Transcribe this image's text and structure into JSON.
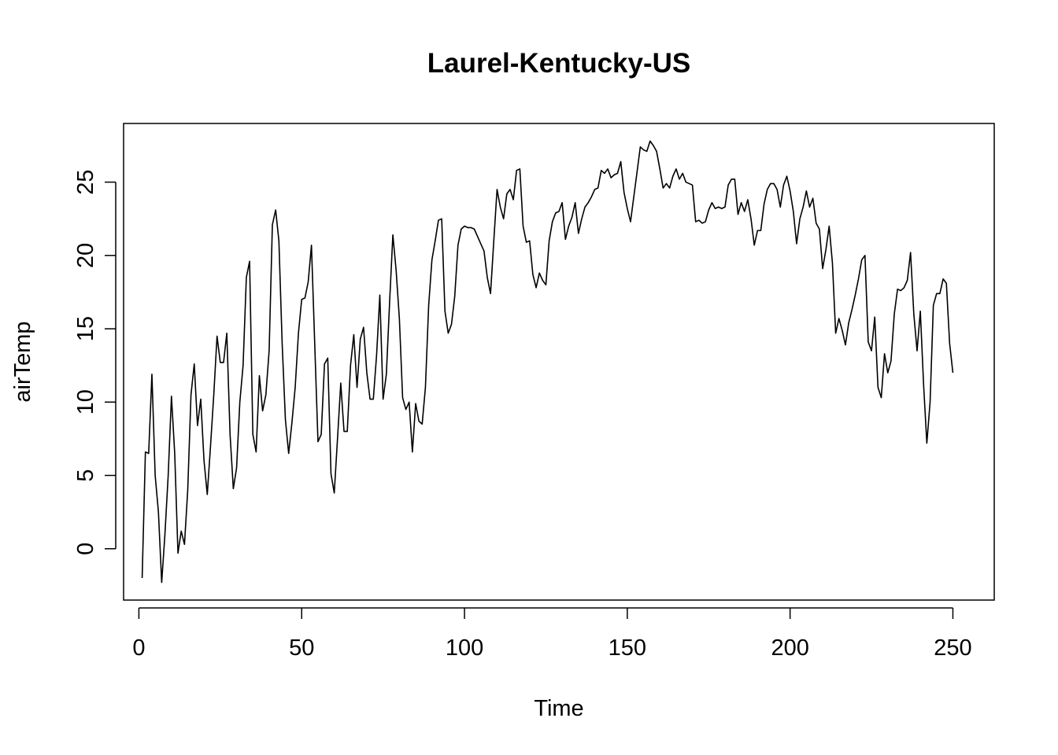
{
  "chart_data": {
    "type": "line",
    "title": "Laurel-Kentucky-US",
    "xlabel": "Time",
    "ylabel": "airTemp",
    "xlim": [
      -4.7,
      262.7
    ],
    "ylim": [
      -3.5,
      29.0
    ],
    "xticks": [
      0,
      50,
      100,
      150,
      200,
      250
    ],
    "yticks": [
      0,
      5,
      10,
      15,
      20,
      25
    ],
    "xtick_labels": [
      "0",
      "50",
      "100",
      "150",
      "200",
      "250"
    ],
    "ytick_labels": [
      "0",
      "5",
      "10",
      "15",
      "20",
      "25"
    ],
    "grid": false,
    "legend": "none",
    "line_color": "#000000",
    "series": [
      {
        "x_start": 1,
        "values": [
          -2.0,
          6.6,
          6.5,
          11.9,
          5.0,
          2.5,
          -2.3,
          1.0,
          5.0,
          10.4,
          6.5,
          -0.3,
          1.2,
          0.3,
          4.0,
          10.5,
          12.6,
          8.4,
          10.2,
          6.0,
          3.7,
          7.0,
          10.5,
          14.5,
          12.7,
          12.7,
          14.7,
          7.8,
          4.1,
          5.5,
          10.0,
          12.5,
          18.5,
          19.6,
          7.8,
          6.6,
          11.8,
          9.4,
          10.5,
          13.5,
          22.1,
          23.1,
          21.0,
          14.0,
          8.8,
          6.5,
          8.6,
          11.0,
          14.7,
          17.0,
          17.1,
          18.2,
          20.7,
          14.0,
          7.3,
          7.8,
          12.6,
          13.0,
          5.1,
          3.8,
          7.5,
          11.3,
          8.0,
          8.0,
          12.5,
          14.6,
          11.0,
          14.3,
          15.1,
          12.0,
          10.2,
          10.2,
          13.2,
          17.3,
          10.2,
          11.9,
          16.8,
          21.4,
          19.0,
          15.7,
          10.3,
          9.5,
          10.0,
          6.6,
          9.9,
          8.7,
          8.5,
          11.0,
          16.6,
          19.7,
          21.0,
          22.4,
          22.5,
          16.2,
          14.7,
          15.3,
          17.2,
          20.7,
          21.8,
          22.0,
          21.9,
          21.9,
          21.8,
          21.3,
          20.8,
          20.3,
          18.5,
          17.4,
          21.0,
          24.5,
          23.3,
          22.5,
          24.2,
          24.5,
          23.8,
          25.8,
          25.9,
          22.0,
          20.9,
          21.0,
          18.7,
          17.8,
          18.8,
          18.3,
          18.0,
          21.0,
          22.3,
          22.9,
          23.0,
          23.6,
          21.1,
          22.0,
          22.6,
          23.6,
          21.5,
          22.5,
          23.3,
          23.6,
          24.0,
          24.5,
          24.6,
          25.8,
          25.6,
          25.9,
          25.3,
          25.5,
          25.6,
          26.4,
          24.3,
          23.2,
          22.3,
          24.0,
          25.7,
          27.4,
          27.2,
          27.1,
          27.8,
          27.5,
          27.1,
          25.9,
          24.6,
          24.9,
          24.6,
          25.4,
          25.9,
          25.2,
          25.6,
          25.0,
          24.9,
          24.8,
          22.3,
          22.4,
          22.2,
          22.3,
          23.1,
          23.6,
          23.2,
          23.3,
          23.2,
          23.3,
          24.8,
          25.2,
          25.2,
          22.8,
          23.6,
          23.0,
          23.8,
          22.5,
          20.7,
          21.7,
          21.7,
          23.5,
          24.5,
          24.9,
          24.9,
          24.5,
          23.3,
          24.8,
          25.4,
          24.4,
          23.0,
          20.8,
          22.5,
          23.3,
          24.4,
          23.3,
          23.9,
          22.2,
          21.8,
          19.1,
          20.4,
          22.0,
          19.5,
          14.7,
          15.7,
          14.9,
          13.9,
          15.4,
          16.3,
          17.3,
          18.4,
          19.7,
          20.0,
          14.1,
          13.5,
          15.8,
          11.0,
          10.3,
          13.3,
          12.0,
          12.8,
          16.0,
          17.7,
          17.6,
          17.8,
          18.3,
          20.2,
          16.0,
          13.5,
          16.2,
          11.2,
          7.2,
          10.0,
          16.6,
          17.4,
          17.4,
          18.4,
          18.1,
          14.0,
          12.0
        ]
      }
    ]
  }
}
